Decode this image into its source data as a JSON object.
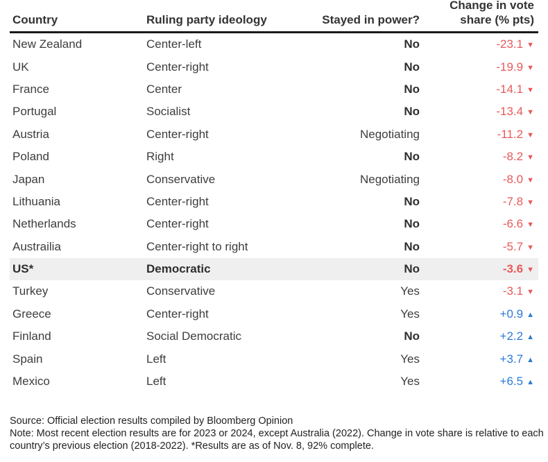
{
  "table": {
    "headers": {
      "country": "Country",
      "ideology": "Ruling party ideology",
      "stayed": "Stayed in power?",
      "change_line1": "Change in vote",
      "change_line2": "share (% pts)"
    },
    "colors": {
      "negative": "#e8595a",
      "positive": "#2a7ad6",
      "highlight_row": "#efefef"
    },
    "rows": [
      {
        "country": "New Zealand",
        "ideology": "Center-left",
        "stayed": "No",
        "change": "-23.1",
        "direction": "down"
      },
      {
        "country": "UK",
        "ideology": "Center-right",
        "stayed": "No",
        "change": "-19.9",
        "direction": "down"
      },
      {
        "country": "France",
        "ideology": "Center",
        "stayed": "No",
        "change": "-14.1",
        "direction": "down"
      },
      {
        "country": "Portugal",
        "ideology": "Socialist",
        "stayed": "No",
        "change": "-13.4",
        "direction": "down"
      },
      {
        "country": "Austria",
        "ideology": "Center-right",
        "stayed": "Negotiating",
        "change": "-11.2",
        "direction": "down"
      },
      {
        "country": "Poland",
        "ideology": "Right",
        "stayed": "No",
        "change": "-8.2",
        "direction": "down"
      },
      {
        "country": "Japan",
        "ideology": "Conservative",
        "stayed": "Negotiating",
        "change": "-8.0",
        "direction": "down"
      },
      {
        "country": "Lithuania",
        "ideology": "Center-right",
        "stayed": "No",
        "change": "-7.8",
        "direction": "down"
      },
      {
        "country": "Netherlands",
        "ideology": "Center-right",
        "stayed": "No",
        "change": "-6.6",
        "direction": "down"
      },
      {
        "country": "Austrailia",
        "ideology": "Center-right to right",
        "stayed": "No",
        "change": "-5.7",
        "direction": "down"
      },
      {
        "country": "US*",
        "ideology": "Democratic",
        "stayed": "No",
        "change": "-3.6",
        "direction": "down",
        "highlight": true
      },
      {
        "country": "Turkey",
        "ideology": "Conservative",
        "stayed": "Yes",
        "change": "-3.1",
        "direction": "down"
      },
      {
        "country": "Greece",
        "ideology": "Center-right",
        "stayed": "Yes",
        "change": "+0.9",
        "direction": "up"
      },
      {
        "country": "Finland",
        "ideology": "Social Democratic",
        "stayed": "No",
        "change": "+2.2",
        "direction": "up"
      },
      {
        "country": "Spain",
        "ideology": "Left",
        "stayed": "Yes",
        "change": "+3.7",
        "direction": "up"
      },
      {
        "country": "Mexico",
        "ideology": "Left",
        "stayed": "Yes",
        "change": "+6.5",
        "direction": "up"
      }
    ]
  },
  "footer": {
    "source": "Source: Official election results compiled by Bloomberg Opinion",
    "note": "Note: Most recent election results are for 2023 or 2024, except Australia (2022). Change in vote share is relative to each country’s previous election (2018-2022). *Results are as of Nov. 8, 92% complete."
  },
  "icons": {
    "down": "▼",
    "up": "▲"
  }
}
